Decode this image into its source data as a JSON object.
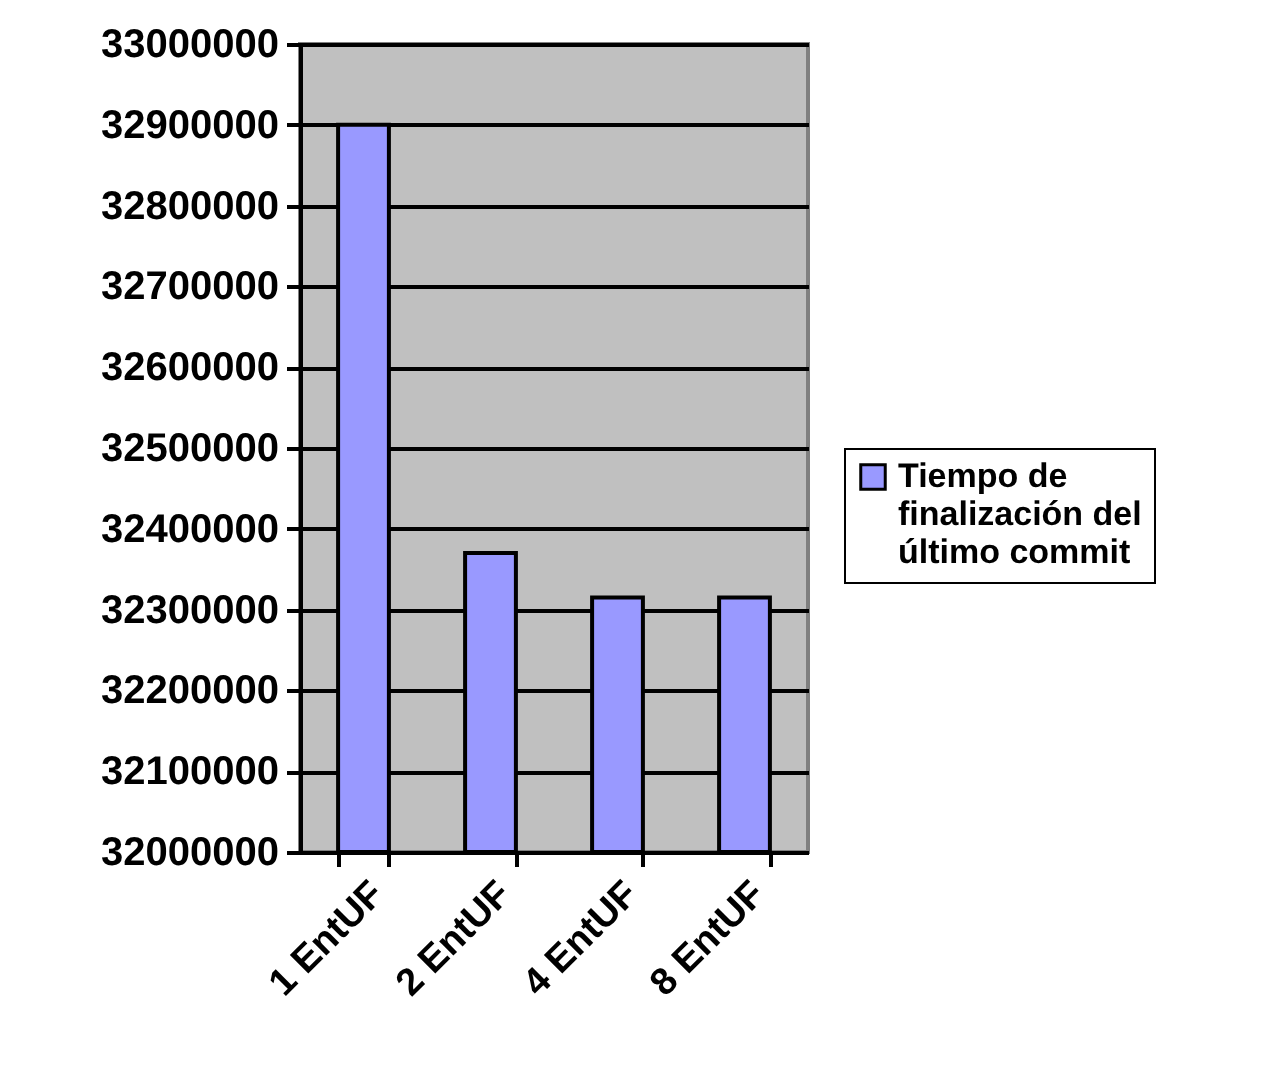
{
  "chart_data": {
    "type": "bar",
    "categories": [
      "1 EntUF",
      "2 EntUF",
      "4 EntUF",
      "8 EntUF"
    ],
    "series": [
      {
        "name": "Tiempo de finalización del último commit",
        "color": "#9999ff",
        "values": [
          32900000,
          32370000,
          32315000,
          32315000
        ]
      }
    ],
    "ylim": [
      32000000,
      33000000
    ],
    "yticks": [
      32000000,
      32100000,
      32200000,
      32300000,
      32400000,
      32500000,
      32600000,
      32700000,
      32800000,
      32900000,
      33000000
    ],
    "grid": "y",
    "legend": "right"
  }
}
